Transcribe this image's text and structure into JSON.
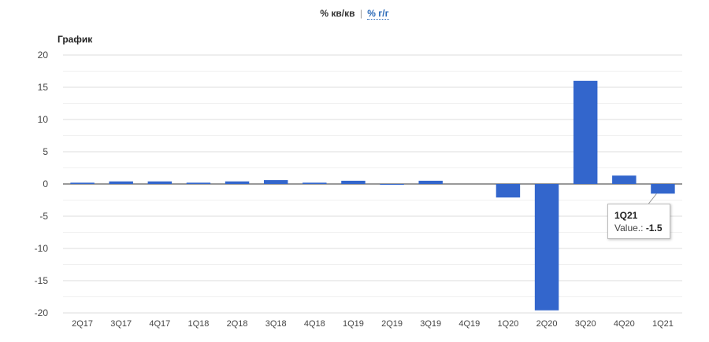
{
  "header": {
    "toggle_qq": "% кв/кв",
    "separator": "|",
    "toggle_yy": "% г/г"
  },
  "chart_data": {
    "type": "bar",
    "title": "График",
    "categories": [
      "2Q17",
      "3Q17",
      "4Q17",
      "1Q18",
      "2Q18",
      "3Q18",
      "4Q18",
      "1Q19",
      "2Q19",
      "3Q19",
      "4Q19",
      "1Q20",
      "2Q20",
      "3Q20",
      "4Q20",
      "1Q21"
    ],
    "series": [
      {
        "values": [
          0.2,
          0.4,
          0.4,
          0.2,
          0.4,
          0.6,
          0.2,
          0.5,
          -0.1,
          0.5,
          0.0,
          -2.1,
          -19.6,
          16.0,
          1.3,
          -1.5
        ]
      }
    ],
    "ylim": [
      -20,
      20
    ],
    "yticks": [
      20,
      15,
      10,
      5,
      0,
      -5,
      -10,
      -15,
      -20
    ],
    "bar_color": "#3366cc",
    "grid": true
  },
  "tooltip": {
    "category": "1Q21",
    "label": "Value.:",
    "value": "-1.5"
  }
}
